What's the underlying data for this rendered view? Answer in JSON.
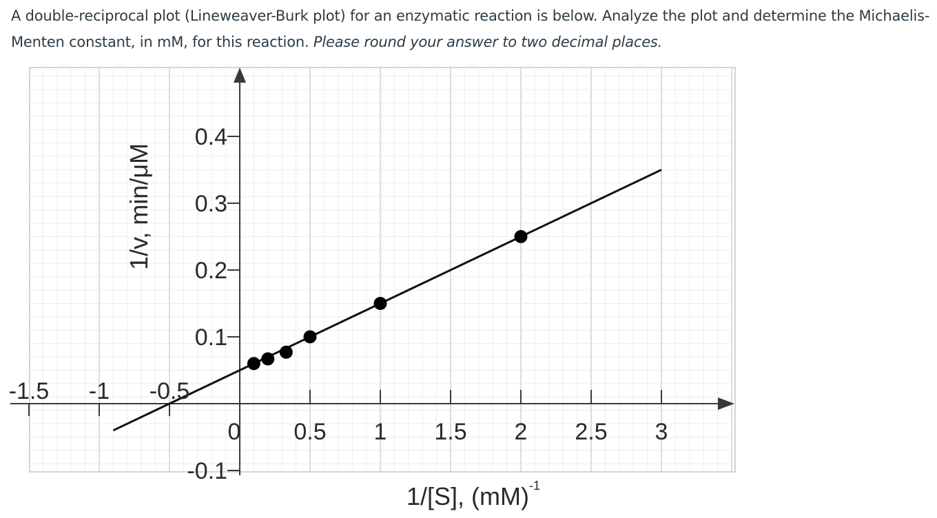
{
  "question": {
    "text": "A double-reciprocal plot (Lineweaver-Burk plot) for an enzymatic reaction is below. Analyze the plot and determine the Michaelis-Menten constant, in mM, for this reaction.",
    "instruction": "Please round your answer to two decimal places."
  },
  "colors": {
    "text": "#2d3b45",
    "grid_minor": "#ececec",
    "grid_major": "#d4d4d4",
    "axis": "#3a3a3a",
    "line": "#111111",
    "point": "#000000"
  },
  "chart_data": {
    "type": "scatter",
    "title": "",
    "xlabel": "1/[S], (mM)",
    "xlabel_superscript": "-1",
    "ylabel": "1/v, min/μM",
    "xlim": [
      -1.5,
      3.5
    ],
    "ylim": [
      -0.15,
      0.5
    ],
    "grid": true,
    "x_ticks": [
      {
        "value": -1.5,
        "label": "-1.5"
      },
      {
        "value": -1,
        "label": "-1"
      },
      {
        "value": -0.5,
        "label": "-0.5"
      },
      {
        "value": 0,
        "label": "0"
      },
      {
        "value": 0.5,
        "label": "0.5"
      },
      {
        "value": 1,
        "label": "1"
      },
      {
        "value": 1.5,
        "label": "1.5"
      },
      {
        "value": 2,
        "label": "2"
      },
      {
        "value": 2.5,
        "label": "2.5"
      },
      {
        "value": 3,
        "label": "3"
      }
    ],
    "y_ticks": [
      {
        "value": 0.4,
        "label": "0.4"
      },
      {
        "value": 0.3,
        "label": "0.3"
      },
      {
        "value": 0.2,
        "label": "0.2"
      },
      {
        "value": 0.1,
        "label": "0.1"
      },
      {
        "value": -0.1,
        "label": "-0.1"
      }
    ],
    "points": [
      {
        "x": 0.1,
        "y": 0.06
      },
      {
        "x": 0.2,
        "y": 0.067
      },
      {
        "x": 0.33,
        "y": 0.077
      },
      {
        "x": 0.5,
        "y": 0.1
      },
      {
        "x": 1,
        "y": 0.15
      },
      {
        "x": 2,
        "y": 0.25
      }
    ],
    "fit_line": {
      "x": [
        -0.9,
        3.0
      ],
      "y": [
        -0.04,
        0.35
      ]
    }
  }
}
